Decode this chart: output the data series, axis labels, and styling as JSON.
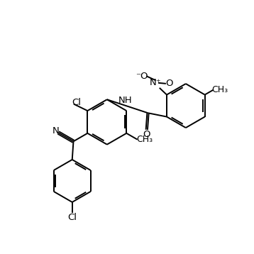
{
  "bg_color": "#ffffff",
  "lw": 1.4,
  "fs": 9.5,
  "figsize": [
    3.58,
    3.58
  ],
  "dpi": 100,
  "xlim": [
    0,
    10
  ],
  "ylim": [
    0,
    10
  ]
}
